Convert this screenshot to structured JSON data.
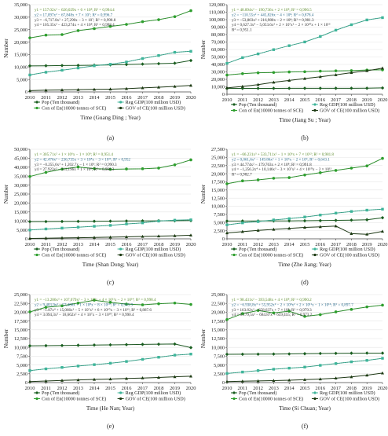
{
  "chart_data": [
    {
      "id": "a",
      "type": "line",
      "panel_label": "(a)",
      "xlabel": "Time (Guang Ding ; Year)",
      "ylabel": "Number",
      "x": [
        2010,
        2011,
        2012,
        2013,
        2014,
        2015,
        2016,
        2017,
        2018,
        2019,
        2020
      ],
      "ylim": [
        0,
        35000
      ],
      "yticks": [
        "0",
        "5,000",
        "10,000",
        "15,000",
        "20,000",
        "25,000",
        "30,000",
        "35,000"
      ],
      "tickvals": [
        0,
        5000,
        10000,
        15000,
        20000,
        25000,
        30000,
        35000
      ],
      "equations": [
        {
          "text": "y1 = 157.02x² − 626,029x + 6 × 10⁸; R² = 0,994.4",
          "color": "#5a8a2a"
        },
        {
          "text": "y2 = 17,097x² − 67,848x + 7 × 10⁷; R² = 0,996.7",
          "color": "#2a6a8a"
        },
        {
          "text": "y3 = −6,717.8x² + 27,290x − 3 × 10⁷; R² = 0,998.8",
          "color": "#2a2a2a"
        },
        {
          "text": "y4 = 105.35x² − 423,274x + 4 × 10⁸; R² = 0,998.4",
          "color": "#2a2a2a"
        }
      ],
      "series": [
        {
          "name": "Pop (Ten thousand)",
          "color": "#1a5e20",
          "values": [
            10441,
            10505,
            10594,
            10644,
            10724,
            10849,
            10999,
            11169,
            11346,
            11521,
            12601
          ]
        },
        {
          "name": "Reg GDP(100 million USD)",
          "color": "#3eb59a",
          "values": [
            6800,
            7900,
            8700,
            9600,
            10500,
            11100,
            12000,
            13400,
            14600,
            15900,
            16300
          ]
        },
        {
          "name": "Con of En(10000 tonnes of SCE)",
          "color": "#2d9e2d",
          "values": [
            21700,
            22800,
            23000,
            24600,
            25400,
            26300,
            27100,
            28200,
            29000,
            30200,
            32600
          ]
        },
        {
          "name": "GOV of CE(100 million USD)",
          "color": "#1c3a12",
          "values": [
            500,
            700,
            800,
            900,
            1000,
            1100,
            1300,
            1600,
            1900,
            2200,
            2600
          ]
        }
      ]
    },
    {
      "id": "b",
      "type": "line",
      "panel_label": "(b)",
      "xlabel": "Time (Jiang Su ; Year)",
      "ylabel": "Number",
      "x": [
        2010,
        2011,
        2012,
        2013,
        2014,
        2015,
        2016,
        2017,
        2018,
        2019,
        2020
      ],
      "ylim": [
        0,
        120000
      ],
      "yticks": [
        "0",
        "10,000",
        "20,000",
        "30,000",
        "40,000",
        "50,000",
        "60,000",
        "70,000",
        "80,000",
        "90,000",
        "100,000",
        "110,000",
        "120,000"
      ],
      "tickvals": [
        0,
        10000,
        20000,
        30000,
        40000,
        50000,
        60000,
        70000,
        80000,
        90000,
        100000,
        110000,
        120000
      ],
      "equations": [
        {
          "text": "y1 = 48.894x² − 190,736x + 2 × 10⁸; R² = 0,996.5",
          "color": "#5a8a2a"
        },
        {
          "text": "y2 = −110.55x² + 445,826x − 4 × 10⁸; R² = 0,878.4",
          "color": "#2a6a8a"
        },
        {
          "text": "y3 = −53,803x² + 216,980x − 2 × 10⁸; R² = 0,981.3",
          "color": "#2a2a2a"
        },
        {
          "text": "y4 = 0,627.3x⁴ − 5,053.6x³ + 2 × 10⁷x² − 2 × 10¹⁰x + 1 × 10¹³",
          "color": "#2a2a2a"
        },
        {
          "text": "R² = 0,951.1",
          "color": "#2a2a2a"
        }
      ],
      "series": [
        {
          "name": "Pop (Ten thousand)",
          "color": "#1a5e20",
          "values": [
            7869,
            7899,
            7920,
            7939,
            7960,
            7976,
            7998,
            8029,
            8051,
            8070,
            8477
          ]
        },
        {
          "name": "Reg GDP(100 million USD)",
          "color": "#3eb59a",
          "values": [
            41400,
            49100,
            54100,
            59800,
            65100,
            70100,
            77400,
            85900,
            93200,
            99600,
            102700
          ]
        },
        {
          "name": "Con of En(10000 tonnes of SCE)",
          "color": "#2d9e2d",
          "values": [
            25800,
            27600,
            28800,
            29200,
            29900,
            30200,
            31000,
            31400,
            31700,
            32500,
            32700
          ]
        },
        {
          "name": "GOV of CE(100 million USD)",
          "color": "#1c3a12",
          "values": [
            8500,
            10500,
            13000,
            16000,
            18500,
            21000,
            23500,
            26000,
            29000,
            31500,
            35000
          ]
        }
      ]
    },
    {
      "id": "c",
      "type": "line",
      "panel_label": "(c)",
      "xlabel": "Time (Shan Dong; Year)",
      "ylabel": "Number",
      "x": [
        2010,
        2011,
        2012,
        2013,
        2014,
        2015,
        2016,
        2017,
        2018,
        2019,
        2020
      ],
      "ylim": [
        0,
        50000
      ],
      "yticks": [
        "0",
        "5,000",
        "10,000",
        "15,000",
        "20,000",
        "25,000",
        "30,000",
        "35,000",
        "40,000",
        "45,000",
        "50,000"
      ],
      "tickvals": [
        0,
        5000,
        10000,
        15000,
        20000,
        25000,
        30000,
        35000,
        40000,
        45000,
        50000
      ],
      "equations": [
        {
          "text": "y1 = 305.71x² + 1 × 10⁶x − 1 × 10⁹; R² = 0,951.4",
          "color": "#5a8a2a"
        },
        {
          "text": "y2 = 42.476x² − 236,735x + 3 × 10⁸x − 3 × 10¹¹; R² = 0,952",
          "color": "#2a6a8a"
        },
        {
          "text": "y3 = −0.255,6x³ + 1,202.7x − 1 × 10⁶; R² = 0,990.3",
          "color": "#2a2a2a"
        },
        {
          "text": "y4 = 27.923x² − 111,196x + 1 × 10⁸; R² = 0,998.3",
          "color": "#2a2a2a"
        }
      ],
      "series": [
        {
          "name": "Pop (Ten thousand)",
          "color": "#1a5e20",
          "values": [
            9588,
            9637,
            9685,
            9733,
            9789,
            9847,
            9947,
            10006,
            10047,
            10070,
            10165
          ]
        },
        {
          "name": "Reg GDP(100 million USD)",
          "color": "#3eb59a",
          "values": [
            4900,
            5500,
            6000,
            6500,
            7000,
            7500,
            8300,
            8900,
            9900,
            10400,
            10600
          ]
        },
        {
          "name": "Con of En(10000 tonnes of SCE)",
          "color": "#2d9e2d",
          "values": [
            34800,
            37100,
            38900,
            40100,
            39200,
            38800,
            39000,
            39100,
            39500,
            41300,
            44100
          ]
        },
        {
          "name": "GOV of CE(100 million USD)",
          "color": "#1c3a12",
          "values": [
            200,
            350,
            500,
            600,
            750,
            900,
            1100,
            1300,
            1500,
            1700,
            2000
          ]
        }
      ]
    },
    {
      "id": "d",
      "type": "line",
      "panel_label": "(d)",
      "xlabel": "Time (Zhe Jiang; Year)",
      "ylabel": "Number",
      "x": [
        2010,
        2011,
        2012,
        2013,
        2014,
        2015,
        2016,
        2017,
        2018,
        2019,
        2020
      ],
      "ylim": [
        0,
        27500
      ],
      "yticks": [
        "0",
        "2,500",
        "5,000",
        "7,500",
        "10,000",
        "12,500",
        "15,000",
        "17,500",
        "20,000",
        "22,500",
        "25,000",
        "27,500"
      ],
      "tickvals": [
        0,
        2500,
        5000,
        7500,
        10000,
        12500,
        15000,
        17500,
        20000,
        22500,
        25000,
        27500
      ],
      "equations": [
        {
          "text": "y1 = −66.231x³ + 533,711x² − 1 × 10⁶x + 7 × 10¹²; R² = 0,981.8",
          "color": "#5a8a2a"
        },
        {
          "text": "y2 = 0,061,6x³ − 149.86x² + 1 × 10⁶x − 2 × 10⁹; R² = 0,643.1",
          "color": "#2a6a8a"
        },
        {
          "text": "y3 = 44.774x² − 179,763x + 2 × 10⁸; R² = 0,991.8",
          "color": "#2a2a2a"
        },
        {
          "text": "y4 = −1,256.2x⁴ + 10,146x³ − 3 × 10⁷x² + 4 × 10¹⁰x − 2 × 10¹³",
          "color": "#2a2a2a"
        },
        {
          "text": "R² = 0,982.7",
          "color": "#2a2a2a"
        }
      ],
      "series": [
        {
          "name": "Pop (Ten thousand)",
          "color": "#1a5e20",
          "values": [
            5447,
            5463,
            5477,
            5498,
            5508,
            5539,
            5590,
            5657,
            5737,
            5850,
            6468
          ]
        },
        {
          "name": "Reg GDP(100 million USD)",
          "color": "#3eb59a",
          "values": [
            4300,
            4900,
            5300,
            5800,
            6200,
            6700,
            7300,
            7900,
            8400,
            8800,
            9100
          ]
        },
        {
          "name": "Con of En(10000 tonnes of SCE)",
          "color": "#2d9e2d",
          "values": [
            16900,
            17800,
            18100,
            18600,
            18800,
            19600,
            20300,
            21000,
            21700,
            22400,
            24700
          ]
        },
        {
          "name": "GOV of CE(100 million USD)",
          "color": "#1c3a12",
          "values": [
            1800,
            2200,
            2600,
            2900,
            3200,
            3500,
            3700,
            3900,
            1600,
            1400,
            2300
          ]
        }
      ]
    },
    {
      "id": "e",
      "type": "line",
      "panel_label": "(e)",
      "xlabel": "Time (He Nan; Year)",
      "ylabel": "Number",
      "x": [
        2010,
        2011,
        2012,
        2013,
        2014,
        2015,
        2016,
        2017,
        2018,
        2019,
        2020
      ],
      "ylim": [
        0,
        25000
      ],
      "yticks": [
        "0",
        "2,500",
        "5,000",
        "7,500",
        "10,000",
        "12,500",
        "15,000",
        "17,500",
        "20,000",
        "22,500",
        "25,000"
      ],
      "tickvals": [
        0,
        2500,
        5000,
        7500,
        10000,
        12500,
        15000,
        17500,
        20000,
        22500,
        25000
      ],
      "equations": [
        {
          "text": "y1 = −13.286x³ + 107,079x² − 3 × 10⁸x + 4 × 10¹¹x − 2 × 10¹⁴; R² = 0,998.4",
          "color": "#5a8a2a"
        },
        {
          "text": "y2 = 9.483,9x² − 57,406x + 1 × 10⁸x − 8 × 10¹⁰; R² = 0,945.9",
          "color": "#2a6a8a"
        },
        {
          "text": "y3 = −1.87x⁴ + 15,066x³ − 5 × 10⁷x² + 6 × 10¹⁰x − 3 × 10¹³; R² = 0,887.6",
          "color": "#2a2a2a"
        },
        {
          "text": "y4 = 3.094,3x³ − 18,662x² + 4 × 10⁷x − 3 × 10¹⁰; R² = 0,990.4",
          "color": "#2a2a2a"
        }
      ],
      "series": [
        {
          "name": "Pop (Ten thousand)",
          "color": "#1a5e20",
          "values": [
            10437,
            10489,
            10543,
            10601,
            10662,
            10722,
            10788,
            10853,
            10906,
            10952,
            9941
          ]
        },
        {
          "name": "Reg GDP(100 million USD)",
          "color": "#3eb59a",
          "values": [
            3400,
            3900,
            4300,
            4700,
            5100,
            5500,
            6000,
            6600,
            7200,
            7800,
            8100
          ]
        },
        {
          "name": "Con of En(10000 tonnes of SCE)",
          "color": "#2d9e2d",
          "values": [
            20100,
            21400,
            21800,
            22600,
            23400,
            22800,
            22300,
            22100,
            22400,
            22600,
            22200
          ]
        },
        {
          "name": "GOV of CE(100 million USD)",
          "color": "#1c3a12",
          "values": [
            300,
            450,
            600,
            750,
            900,
            1000,
            1150,
            1300,
            1450,
            1650,
            1800
          ]
        }
      ]
    },
    {
      "id": "f",
      "type": "line",
      "panel_label": "(f)",
      "xlabel": "Time (Si Chuan; Year)",
      "ylabel": "Number",
      "x": [
        2010,
        2011,
        2012,
        2013,
        2014,
        2015,
        2016,
        2017,
        2018,
        2019,
        2020
      ],
      "ylim": [
        0,
        25000
      ],
      "yticks": [
        "0",
        "2,500",
        "5,000",
        "7,500",
        "10,000",
        "12,500",
        "15,000",
        "17,500",
        "20,000",
        "22,500",
        "25,000"
      ],
      "tickvals": [
        0,
        2500,
        5000,
        7500,
        10000,
        12500,
        15000,
        17500,
        20000,
        22500,
        25000
      ],
      "equations": [
        {
          "text": "y1 = 98.431x² − 393,548x + 4 × 10⁸; R² = 0,990.2",
          "color": "#5a8a2a"
        },
        {
          "text": "y2 = −6.938,8x³ + 55,952x² − 2 × 10⁸x² + 2 × 10¹¹x − 1 × 10¹⁴; R² = 0,897.7",
          "color": "#2a6a8a"
        },
        {
          "text": "y3 = 163.82x² − 658,637x + 7 × 10⁸; R² = 0,979.3",
          "color": "#2a2a2a"
        },
        {
          "text": "y4 = 0.179,5x² − 684.87x + 659,455; R² = 0,973.2",
          "color": "#2a2a2a"
        }
      ],
      "series": [
        {
          "name": "Pop (Ten thousand)",
          "color": "#1a5e20",
          "values": [
            8045,
            8050,
            8076,
            8107,
            8140,
            8204,
            8262,
            8302,
            8341,
            8375,
            8371
          ]
        },
        {
          "name": "Reg GDP(100 million USD)",
          "color": "#3eb59a",
          "values": [
            2600,
            3000,
            3400,
            3800,
            4100,
            4400,
            4900,
            5400,
            5900,
            6300,
            6900
          ]
        },
        {
          "name": "Con of En(10000 tonnes of SCE)",
          "color": "#2d9e2d",
          "values": [
            17900,
            19600,
            20500,
            19800,
            20300,
            18800,
            19300,
            20100,
            20800,
            21500,
            22000
          ]
        },
        {
          "name": "GOV of CE(100 million USD)",
          "color": "#1c3a12",
          "values": [
            300,
            380,
            460,
            560,
            680,
            820,
            1000,
            1250,
            1600,
            2100,
            2700
          ]
        }
      ]
    }
  ]
}
